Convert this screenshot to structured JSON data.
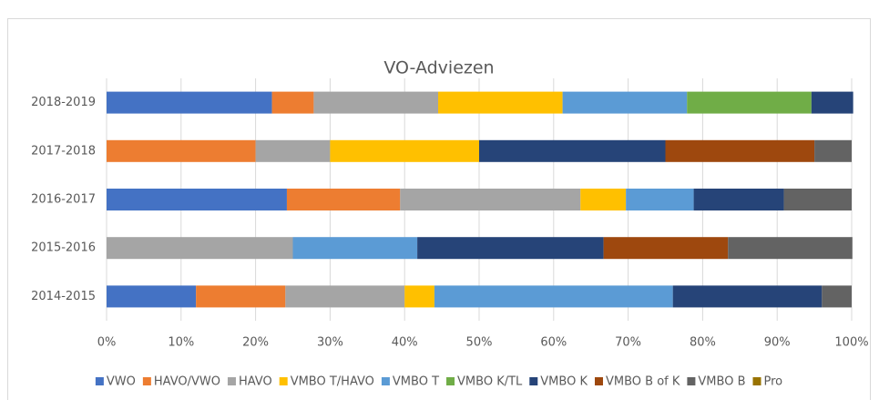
{
  "chart_data": {
    "type": "stacked_bar_horizontal",
    "title": "VO-Adviezen",
    "categories": [
      "2018-2019",
      "2017-2018",
      "2016-2017",
      "2015-2016",
      "2014-2015"
    ],
    "series": [
      {
        "name": "VWO",
        "color": "#4472c4",
        "values": [
          22.2,
          0,
          24.2,
          0,
          12
        ]
      },
      {
        "name": "HAVO/VWO",
        "color": "#ed7d31",
        "values": [
          5.6,
          20,
          15.2,
          0,
          12
        ]
      },
      {
        "name": "HAVO",
        "color": "#a5a5a5",
        "values": [
          16.7,
          10,
          24.2,
          25,
          16
        ]
      },
      {
        "name": "VMBO T/HAVO",
        "color": "#ffc000",
        "values": [
          16.7,
          20,
          6.1,
          0,
          4
        ]
      },
      {
        "name": "VMBO T",
        "color": "#5b9bd5",
        "values": [
          16.7,
          0,
          9.1,
          16.7,
          32
        ]
      },
      {
        "name": "VMBO K/TL",
        "color": "#70ad47",
        "values": [
          16.7,
          0,
          0,
          0,
          0
        ]
      },
      {
        "name": "VMBO K",
        "color": "#264478",
        "values": [
          5.6,
          25,
          12.1,
          25,
          20
        ]
      },
      {
        "name": "VMBO B of K",
        "color": "#9e480e",
        "values": [
          0,
          20,
          0,
          16.7,
          0
        ]
      },
      {
        "name": "VMBO B",
        "color": "#636363",
        "values": [
          0,
          5,
          9.1,
          16.7,
          4
        ]
      },
      {
        "name": "Pro",
        "color": "#997300",
        "values": [
          0,
          0,
          0,
          0,
          0
        ]
      }
    ],
    "xlim": [
      0,
      100
    ],
    "xticks": [
      {
        "value": 0,
        "label": "0%"
      },
      {
        "value": 10,
        "label": "10%"
      },
      {
        "value": 20,
        "label": "20%"
      },
      {
        "value": 30,
        "label": "30%"
      },
      {
        "value": 40,
        "label": "40%"
      },
      {
        "value": 50,
        "label": "50%"
      },
      {
        "value": 60,
        "label": "60%"
      },
      {
        "value": 70,
        "label": "70%"
      },
      {
        "value": 80,
        "label": "80%"
      },
      {
        "value": 90,
        "label": "90%"
      },
      {
        "value": 100,
        "label": "100%"
      }
    ],
    "grid": true,
    "legend": "bottom"
  }
}
